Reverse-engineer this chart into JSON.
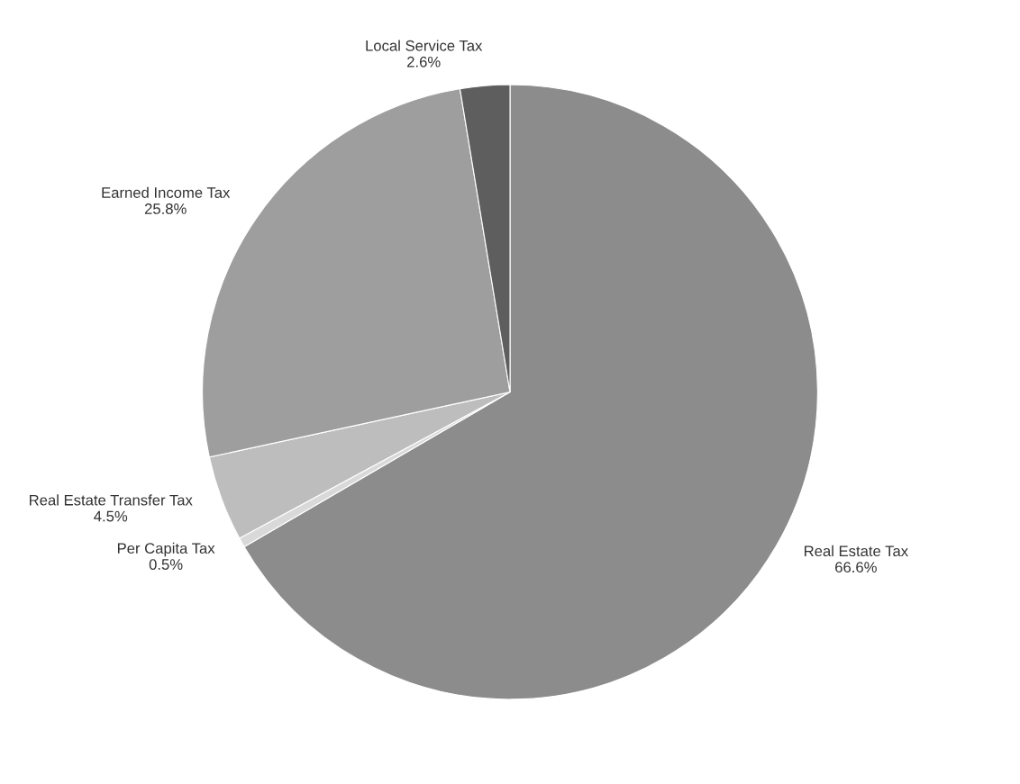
{
  "chart_data": {
    "type": "pie",
    "categories": [
      "Real Estate Tax",
      "Per Capita Tax",
      "Real Estate Transfer Tax",
      "Earned Income Tax",
      "Local Service Tax"
    ],
    "values": [
      66.6,
      0.5,
      4.5,
      25.8,
      2.6
    ],
    "value_labels": [
      "66.6%",
      "0.5%",
      "4.5%",
      "25.8%",
      "2.6%"
    ],
    "colors": [
      "#8c8c8c",
      "#d9d9d9",
      "#bdbdbd",
      "#9e9e9e",
      "#5e5e5e"
    ]
  }
}
